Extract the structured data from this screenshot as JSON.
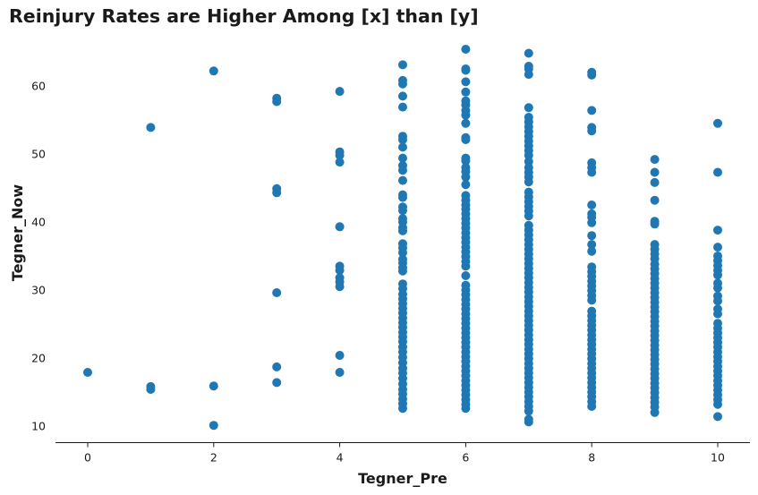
{
  "chart_data": {
    "type": "scatter",
    "title": "Reinjury Rates are Higher Among [x] than [y]",
    "xlabel": "Tegner_Pre",
    "ylabel": "Tegner_Now",
    "xlim": [
      -0.5,
      10.5
    ],
    "ylim": [
      7.3,
      67
    ],
    "xticks": [
      0,
      2,
      4,
      6,
      8,
      10
    ],
    "yticks": [
      10,
      20,
      30,
      40,
      50,
      60
    ],
    "grid": false,
    "marker_color": "#1f77b4",
    "points": [
      [
        0,
        17.9
      ],
      [
        1,
        53.9
      ],
      [
        1,
        15.8
      ],
      [
        1,
        15.4
      ],
      [
        2,
        62.2
      ],
      [
        2,
        15.9
      ],
      [
        2,
        10.1
      ],
      [
        3,
        58.2
      ],
      [
        3,
        57.7
      ],
      [
        3,
        44.9
      ],
      [
        3,
        44.3
      ],
      [
        3,
        29.6
      ],
      [
        3,
        18.7
      ],
      [
        3,
        16.4
      ],
      [
        4,
        59.2
      ],
      [
        4,
        50.3
      ],
      [
        4,
        49.8
      ],
      [
        4,
        48.8
      ],
      [
        4,
        39.3
      ],
      [
        4,
        33.5
      ],
      [
        4,
        32.9
      ],
      [
        4,
        31.8
      ],
      [
        4,
        31.2
      ],
      [
        4,
        30.5
      ],
      [
        4,
        20.4
      ],
      [
        4,
        17.9
      ],
      [
        5,
        63.1
      ],
      [
        5,
        60.8
      ],
      [
        5,
        60.3
      ],
      [
        5,
        58.5
      ],
      [
        5,
        56.9
      ],
      [
        5,
        52.6
      ],
      [
        5,
        52.1
      ],
      [
        5,
        51.0
      ],
      [
        5,
        49.4
      ],
      [
        5,
        48.3
      ],
      [
        5,
        47.6
      ],
      [
        5,
        46.1
      ],
      [
        5,
        44.0
      ],
      [
        5,
        43.6
      ],
      [
        5,
        42.2
      ],
      [
        5,
        41.7
      ],
      [
        5,
        40.5
      ],
      [
        5,
        40.0
      ],
      [
        5,
        39.2
      ],
      [
        5,
        38.7
      ],
      [
        5,
        36.8
      ],
      [
        5,
        36.2
      ],
      [
        5,
        35.5
      ],
      [
        5,
        34.5
      ],
      [
        5,
        34.0
      ],
      [
        5,
        33.3
      ],
      [
        5,
        32.8
      ],
      [
        5,
        30.9
      ],
      [
        5,
        30.2
      ],
      [
        5,
        29.4
      ],
      [
        5,
        28.7
      ],
      [
        5,
        28.0
      ],
      [
        5,
        27.3
      ],
      [
        5,
        26.6
      ],
      [
        5,
        25.9
      ],
      [
        5,
        25.2
      ],
      [
        5,
        24.5
      ],
      [
        5,
        23.8
      ],
      [
        5,
        23.1
      ],
      [
        5,
        22.4
      ],
      [
        5,
        21.6
      ],
      [
        5,
        20.9
      ],
      [
        5,
        20.1
      ],
      [
        5,
        19.3
      ],
      [
        5,
        18.5
      ],
      [
        5,
        17.8
      ],
      [
        5,
        17.0
      ],
      [
        5,
        16.2
      ],
      [
        5,
        15.4
      ],
      [
        5,
        14.7
      ],
      [
        5,
        14.0
      ],
      [
        5,
        13.3
      ],
      [
        5,
        12.6
      ],
      [
        6,
        65.4
      ],
      [
        6,
        62.5
      ],
      [
        6,
        62.3
      ],
      [
        6,
        60.6
      ],
      [
        6,
        59.1
      ],
      [
        6,
        57.8
      ],
      [
        6,
        57.2
      ],
      [
        6,
        56.4
      ],
      [
        6,
        55.7
      ],
      [
        6,
        54.5
      ],
      [
        6,
        52.4
      ],
      [
        6,
        52.1
      ],
      [
        6,
        49.4
      ],
      [
        6,
        49.0
      ],
      [
        6,
        48.0
      ],
      [
        6,
        47.4
      ],
      [
        6,
        46.6
      ],
      [
        6,
        45.5
      ],
      [
        6,
        43.9
      ],
      [
        6,
        43.2
      ],
      [
        6,
        42.5
      ],
      [
        6,
        41.9
      ],
      [
        6,
        41.2
      ],
      [
        6,
        40.5
      ],
      [
        6,
        39.8
      ],
      [
        6,
        39.1
      ],
      [
        6,
        38.4
      ],
      [
        6,
        37.7
      ],
      [
        6,
        37.0
      ],
      [
        6,
        36.3
      ],
      [
        6,
        35.6
      ],
      [
        6,
        34.9
      ],
      [
        6,
        34.2
      ],
      [
        6,
        33.5
      ],
      [
        6,
        32.1
      ],
      [
        6,
        30.7
      ],
      [
        6,
        30.0
      ],
      [
        6,
        29.3
      ],
      [
        6,
        28.6
      ],
      [
        6,
        27.9
      ],
      [
        6,
        27.2
      ],
      [
        6,
        26.5
      ],
      [
        6,
        25.8
      ],
      [
        6,
        25.1
      ],
      [
        6,
        24.4
      ],
      [
        6,
        23.7
      ],
      [
        6,
        23.0
      ],
      [
        6,
        22.3
      ],
      [
        6,
        21.6
      ],
      [
        6,
        20.9
      ],
      [
        6,
        20.2
      ],
      [
        6,
        19.5
      ],
      [
        6,
        18.8
      ],
      [
        6,
        18.1
      ],
      [
        6,
        17.4
      ],
      [
        6,
        16.7
      ],
      [
        6,
        16.0
      ],
      [
        6,
        15.3
      ],
      [
        6,
        14.6
      ],
      [
        6,
        13.9
      ],
      [
        6,
        13.2
      ],
      [
        6,
        12.6
      ],
      [
        7,
        64.8
      ],
      [
        7,
        62.9
      ],
      [
        7,
        62.5
      ],
      [
        7,
        61.7
      ],
      [
        7,
        56.8
      ],
      [
        7,
        55.4
      ],
      [
        7,
        54.7
      ],
      [
        7,
        54.0
      ],
      [
        7,
        53.3
      ],
      [
        7,
        52.6
      ],
      [
        7,
        51.9
      ],
      [
        7,
        51.2
      ],
      [
        7,
        50.5
      ],
      [
        7,
        49.8
      ],
      [
        7,
        48.9
      ],
      [
        7,
        48.0
      ],
      [
        7,
        47.3
      ],
      [
        7,
        46.6
      ],
      [
        7,
        45.9
      ],
      [
        7,
        44.4
      ],
      [
        7,
        43.7
      ],
      [
        7,
        43.0
      ],
      [
        7,
        42.3
      ],
      [
        7,
        41.6
      ],
      [
        7,
        40.9
      ],
      [
        7,
        39.5
      ],
      [
        7,
        38.8
      ],
      [
        7,
        38.1
      ],
      [
        7,
        37.4
      ],
      [
        7,
        36.7
      ],
      [
        7,
        36.0
      ],
      [
        7,
        35.3
      ],
      [
        7,
        34.6
      ],
      [
        7,
        33.9
      ],
      [
        7,
        33.2
      ],
      [
        7,
        32.5
      ],
      [
        7,
        31.8
      ],
      [
        7,
        31.1
      ],
      [
        7,
        30.4
      ],
      [
        7,
        29.7
      ],
      [
        7,
        29.0
      ],
      [
        7,
        28.3
      ],
      [
        7,
        27.6
      ],
      [
        7,
        26.9
      ],
      [
        7,
        26.2
      ],
      [
        7,
        25.5
      ],
      [
        7,
        24.8
      ],
      [
        7,
        24.1
      ],
      [
        7,
        23.4
      ],
      [
        7,
        22.7
      ],
      [
        7,
        22.0
      ],
      [
        7,
        21.3
      ],
      [
        7,
        20.6
      ],
      [
        7,
        19.9
      ],
      [
        7,
        19.2
      ],
      [
        7,
        18.5
      ],
      [
        7,
        17.8
      ],
      [
        7,
        17.1
      ],
      [
        7,
        16.4
      ],
      [
        7,
        15.7
      ],
      [
        7,
        15.0
      ],
      [
        7,
        14.3
      ],
      [
        7,
        13.6
      ],
      [
        7,
        12.9
      ],
      [
        7,
        12.2
      ],
      [
        7,
        11.0
      ],
      [
        7,
        10.6
      ],
      [
        8,
        62.0
      ],
      [
        8,
        61.6
      ],
      [
        8,
        56.4
      ],
      [
        8,
        53.9
      ],
      [
        8,
        53.4
      ],
      [
        8,
        48.7
      ],
      [
        8,
        48.0
      ],
      [
        8,
        47.3
      ],
      [
        8,
        42.5
      ],
      [
        8,
        41.2
      ],
      [
        8,
        40.7
      ],
      [
        8,
        39.9
      ],
      [
        8,
        38.0
      ],
      [
        8,
        36.7
      ],
      [
        8,
        35.7
      ],
      [
        8,
        33.4
      ],
      [
        8,
        32.7
      ],
      [
        8,
        32.0
      ],
      [
        8,
        31.3
      ],
      [
        8,
        30.6
      ],
      [
        8,
        29.9
      ],
      [
        8,
        29.2
      ],
      [
        8,
        28.5
      ],
      [
        8,
        26.9
      ],
      [
        8,
        26.2
      ],
      [
        8,
        25.5
      ],
      [
        8,
        24.8
      ],
      [
        8,
        24.1
      ],
      [
        8,
        23.4
      ],
      [
        8,
        22.7
      ],
      [
        8,
        22.0
      ],
      [
        8,
        21.3
      ],
      [
        8,
        20.6
      ],
      [
        8,
        19.9
      ],
      [
        8,
        19.2
      ],
      [
        8,
        18.5
      ],
      [
        8,
        17.8
      ],
      [
        8,
        17.1
      ],
      [
        8,
        16.4
      ],
      [
        8,
        15.7
      ],
      [
        8,
        15.0
      ],
      [
        8,
        14.3
      ],
      [
        8,
        13.6
      ],
      [
        8,
        12.9
      ],
      [
        9,
        49.2
      ],
      [
        9,
        47.3
      ],
      [
        9,
        45.8
      ],
      [
        9,
        43.2
      ],
      [
        9,
        40.1
      ],
      [
        9,
        39.7
      ],
      [
        9,
        36.7
      ],
      [
        9,
        36.0
      ],
      [
        9,
        35.3
      ],
      [
        9,
        34.6
      ],
      [
        9,
        33.8
      ],
      [
        9,
        33.1
      ],
      [
        9,
        32.4
      ],
      [
        9,
        31.7
      ],
      [
        9,
        31.0
      ],
      [
        9,
        30.3
      ],
      [
        9,
        29.6
      ],
      [
        9,
        28.9
      ],
      [
        9,
        28.2
      ],
      [
        9,
        27.5
      ],
      [
        9,
        26.8
      ],
      [
        9,
        26.1
      ],
      [
        9,
        25.4
      ],
      [
        9,
        24.7
      ],
      [
        9,
        24.0
      ],
      [
        9,
        23.3
      ],
      [
        9,
        22.6
      ],
      [
        9,
        21.9
      ],
      [
        9,
        21.2
      ],
      [
        9,
        20.5
      ],
      [
        9,
        19.8
      ],
      [
        9,
        19.1
      ],
      [
        9,
        18.4
      ],
      [
        9,
        17.7
      ],
      [
        9,
        17.0
      ],
      [
        9,
        16.3
      ],
      [
        9,
        15.6
      ],
      [
        9,
        14.9
      ],
      [
        9,
        14.2
      ],
      [
        9,
        13.5
      ],
      [
        9,
        12.8
      ],
      [
        9,
        12.0
      ],
      [
        10,
        54.5
      ],
      [
        10,
        47.3
      ],
      [
        10,
        38.8
      ],
      [
        10,
        36.3
      ],
      [
        10,
        35.0
      ],
      [
        10,
        34.3
      ],
      [
        10,
        33.6
      ],
      [
        10,
        32.9
      ],
      [
        10,
        32.2
      ],
      [
        10,
        31.0
      ],
      [
        10,
        30.3
      ],
      [
        10,
        29.1
      ],
      [
        10,
        28.4
      ],
      [
        10,
        27.2
      ],
      [
        10,
        26.5
      ],
      [
        10,
        25.1
      ],
      [
        10,
        24.4
      ],
      [
        10,
        23.7
      ],
      [
        10,
        23.0
      ],
      [
        10,
        22.3
      ],
      [
        10,
        21.6
      ],
      [
        10,
        20.9
      ],
      [
        10,
        20.2
      ],
      [
        10,
        19.5
      ],
      [
        10,
        18.8
      ],
      [
        10,
        18.1
      ],
      [
        10,
        17.4
      ],
      [
        10,
        16.7
      ],
      [
        10,
        16.0
      ],
      [
        10,
        15.3
      ],
      [
        10,
        14.6
      ],
      [
        10,
        13.9
      ],
      [
        10,
        13.2
      ],
      [
        10,
        11.4
      ]
    ]
  }
}
